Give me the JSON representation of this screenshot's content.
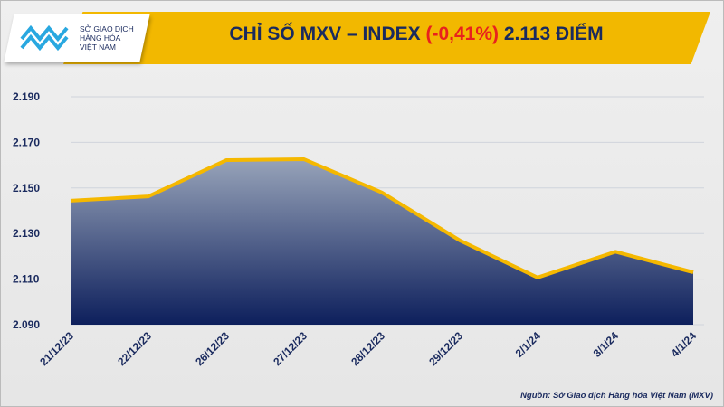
{
  "header": {
    "logo_text": [
      "SỞ GIAO DỊCH",
      "HÀNG HÓA",
      "VIỆT NAM"
    ],
    "title_prefix": "CHỈ SỐ MXV – INDEX ",
    "title_change": "(-0,41%)",
    "title_suffix": " 2.113 ĐIỂM"
  },
  "source": "Nguồn: Sở Giao dịch Hàng hóa Việt Nam (MXV)",
  "colors": {
    "banner": "#f2b800",
    "line": "#f5b800",
    "area_top": "#97a3b9",
    "area_bottom": "#0d1f5c",
    "text": "#1a2a5e",
    "negative": "#e8211d"
  },
  "chart_data": {
    "type": "area",
    "categories": [
      "21/12/23",
      "22/12/23",
      "26/12/23",
      "27/12/23",
      "28/12/23",
      "29/12/23",
      "2/1/24",
      "3/1/24",
      "4/1/24"
    ],
    "values": [
      2144.4,
      2146.3,
      2162.2,
      2162.6,
      2148.0,
      2127.0,
      2110.7,
      2122.0,
      2113.0
    ],
    "ylim": [
      2090,
      2190
    ],
    "yticks": [
      "2.090",
      "2.110",
      "2.130",
      "2.150",
      "2.170",
      "2.190"
    ],
    "grid": true
  }
}
